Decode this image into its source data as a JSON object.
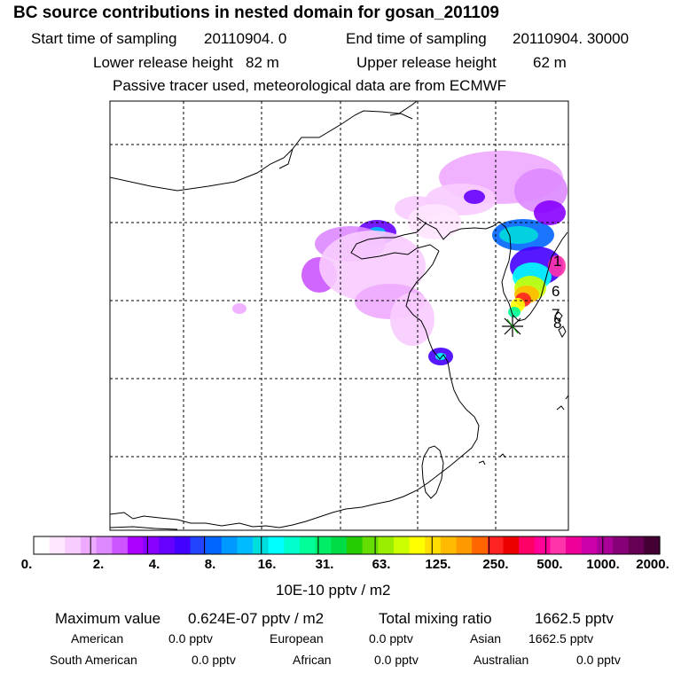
{
  "header": {
    "title": "BC  source contributions in nested domain for gosan_201109",
    "start_label": "Start time of sampling",
    "start_value": "20110904.     0",
    "end_label": "End time of sampling",
    "end_value": "20110904. 30000",
    "lower_label": "Lower release height",
    "lower_value": "82 m",
    "upper_label": "Upper release height",
    "upper_value": "62 m",
    "note": "Passive tracer used, meteorological data are from ECMWF"
  },
  "chart_data": {
    "type": "heatmap",
    "title": "BC  source contributions in nested domain for gosan_201109",
    "map_annotations": [
      "1",
      "6",
      "7",
      "8"
    ],
    "colorbar": {
      "unit_label": "10E-10 pptv / m2",
      "tick_labels": [
        "0.",
        "2.",
        "4.",
        "8.",
        "16.",
        "31.",
        "63.",
        "125.",
        "250.",
        "500.",
        "1000.",
        "2000."
      ],
      "colors": [
        "#ffffff",
        "#ffe6ff",
        "#f8ccff",
        "#eeaaff",
        "#dd88ff",
        "#cc55ff",
        "#aa00ff",
        "#8800ff",
        "#6600ff",
        "#4400ff",
        "#2244ff",
        "#0066ff",
        "#0099ff",
        "#00bbff",
        "#00dddd",
        "#00ffff",
        "#00ffcc",
        "#00ff99",
        "#00ee66",
        "#00dd44",
        "#22cc00",
        "#66dd00",
        "#99ee00",
        "#ccff00",
        "#ffff00",
        "#ffdd00",
        "#ffbb00",
        "#ff9900",
        "#ff6600",
        "#ff2222",
        "#ee0000",
        "#ff0066",
        "#ff0099",
        "#ff33aa",
        "#ee0099",
        "#cc00aa",
        "#aa0099",
        "#880077",
        "#660055",
        "#440033"
      ]
    },
    "source_marker": "Gosan receptor"
  },
  "summary": {
    "max_label": "Maximum value",
    "max_value": "0.624E-07 pptv / m2",
    "total_label": "Total mixing ratio",
    "total_value": "1662.5 pptv",
    "american_label": "American",
    "american_value": "0.0 pptv",
    "european_label": "European",
    "european_value": "0.0 pptv",
    "asian_label": "Asian",
    "asian_value": "1662.5 pptv",
    "south_american_label": "South American",
    "south_american_value": "0.0 pptv",
    "african_label": "African",
    "african_value": "0.0 pptv",
    "australian_label": "Australian",
    "australian_value": "0.0 pptv"
  }
}
